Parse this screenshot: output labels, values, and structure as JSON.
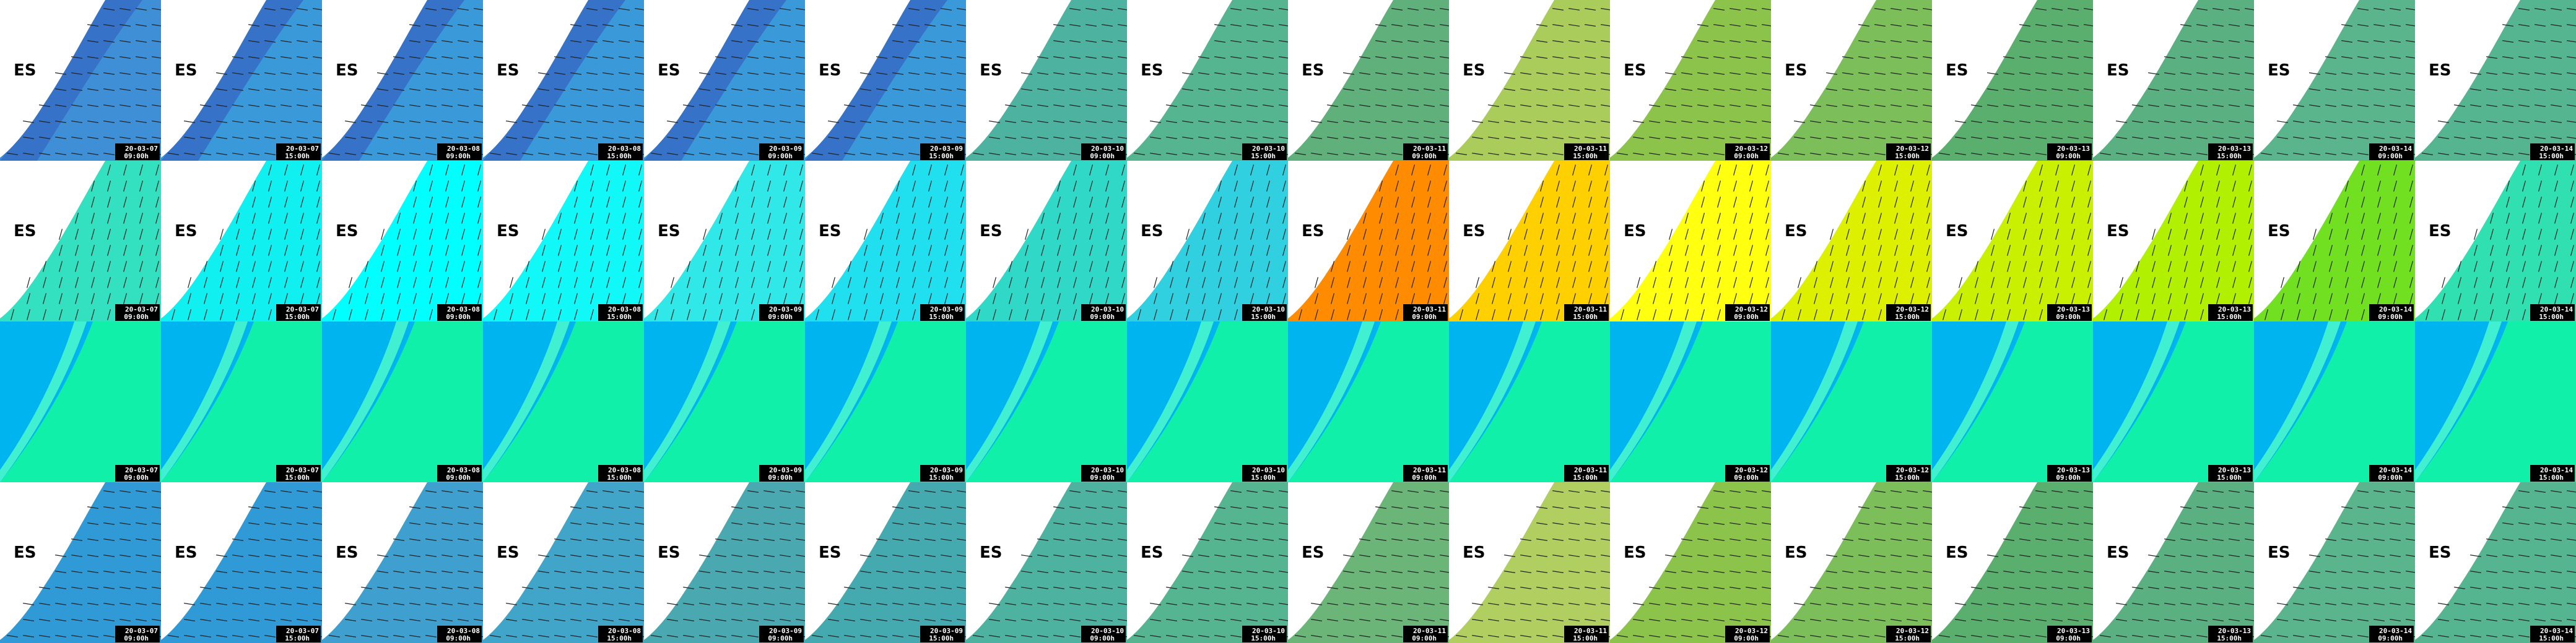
{
  "times": [
    {
      "date": "20-03-07",
      "hour": "09:00h"
    },
    {
      "date": "20-03-07",
      "hour": "15:00h"
    },
    {
      "date": "20-03-08",
      "hour": "09:00h"
    },
    {
      "date": "20-03-08",
      "hour": "15:00h"
    },
    {
      "date": "20-03-09",
      "hour": "09:00h"
    },
    {
      "date": "20-03-09",
      "hour": "15:00h"
    },
    {
      "date": "20-03-10",
      "hour": "09:00h"
    },
    {
      "date": "20-03-10",
      "hour": "15:00h"
    },
    {
      "date": "20-03-11",
      "hour": "09:00h"
    },
    {
      "date": "20-03-11",
      "hour": "15:00h"
    },
    {
      "date": "20-03-12",
      "hour": "09:00h"
    },
    {
      "date": "20-03-12",
      "hour": "15:00h"
    },
    {
      "date": "20-03-13",
      "hour": "09:00h"
    },
    {
      "date": "20-03-13",
      "hour": "15:00h"
    },
    {
      "date": "20-03-14",
      "hour": "09:00h"
    },
    {
      "date": "20-03-14",
      "hour": "15:00h"
    }
  ],
  "rows": [
    {
      "country": "ES"
    },
    {
      "country": "ES"
    },
    {},
    {
      "country": "ES"
    }
  ]
}
